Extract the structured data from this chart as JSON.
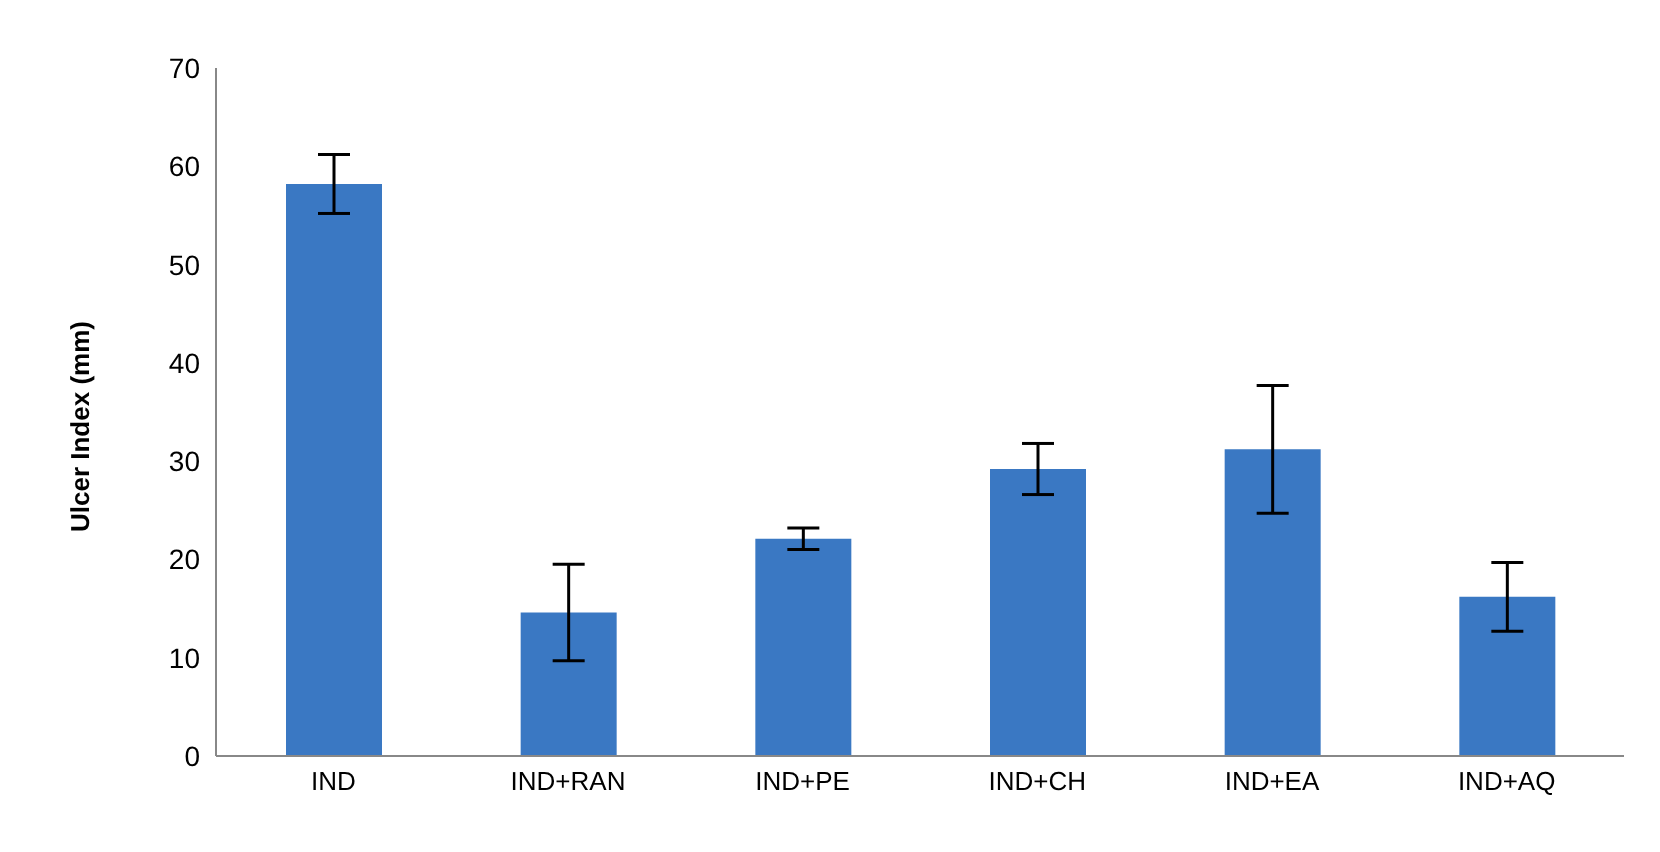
{
  "chart_data": {
    "type": "bar",
    "ylabel": "Ulcer Index (mm)",
    "categories": [
      "IND",
      "IND+RAN",
      "IND+PE",
      "IND+CH",
      "IND+EA",
      "IND+AQ"
    ],
    "values": [
      58.2,
      14.6,
      22.1,
      29.2,
      31.2,
      16.2
    ],
    "errors": [
      3,
      4.9,
      1.1,
      2.6,
      6.5,
      3.5
    ],
    "color": "#3a78c3",
    "ylim": [
      0,
      70
    ],
    "yticks": [
      0,
      10,
      20,
      30,
      40,
      50,
      60,
      70
    ],
    "grid": false,
    "legend": false
  }
}
